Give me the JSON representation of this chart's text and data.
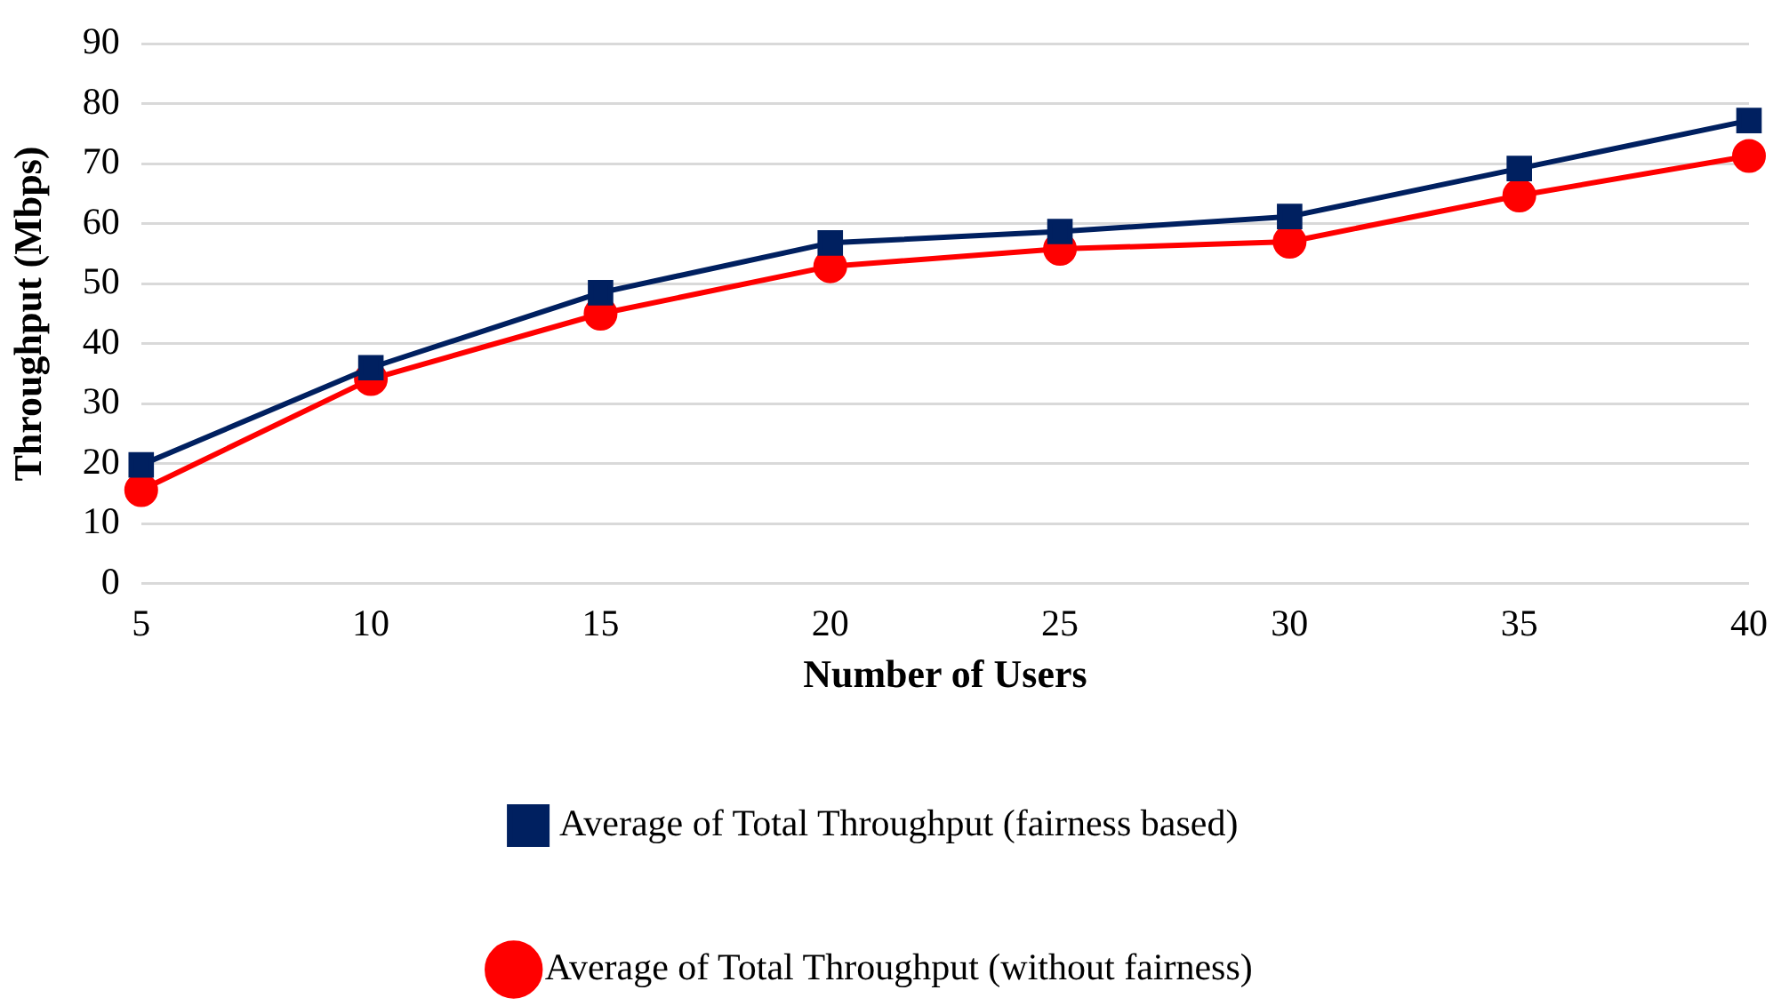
{
  "chart_data": {
    "type": "line",
    "xlabel": "Number of Users",
    "ylabel": "Throughput (Mbps)",
    "categories": [
      "5",
      "10",
      "15",
      "20",
      "25",
      "30",
      "35",
      "40"
    ],
    "series": [
      {
        "name": "Average of Total Throughput (fairness based)",
        "color": "#002060",
        "marker": "square",
        "values": [
          19.8,
          36.0,
          48.5,
          56.8,
          58.7,
          61.2,
          69.2,
          77.2
        ]
      },
      {
        "name": "Average of Total Throughput (without fairness)",
        "color": "#ff0000",
        "marker": "circle",
        "values": [
          15.6,
          34.1,
          45.0,
          52.9,
          55.8,
          57.0,
          64.7,
          71.3
        ]
      }
    ],
    "ylim": [
      0,
      90
    ],
    "yticks": [
      0,
      10,
      20,
      30,
      40,
      50,
      60,
      70,
      80,
      90
    ],
    "grid": "y",
    "legend": "bottom",
    "line_style": "solid"
  }
}
